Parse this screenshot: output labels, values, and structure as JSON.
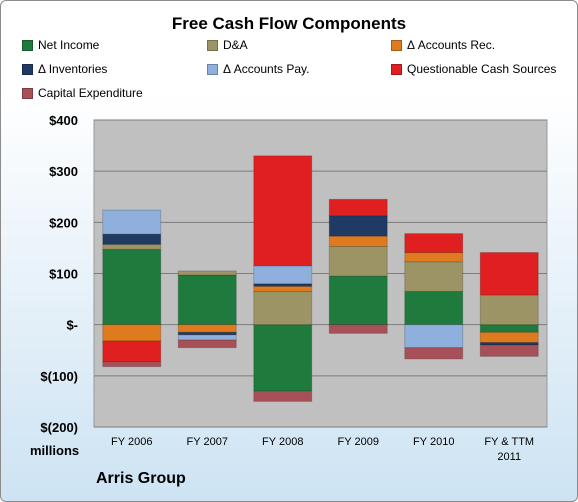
{
  "chart_data": {
    "type": "bar",
    "stacked": true,
    "title": "Free Cash Flow Components",
    "categories": [
      "FY 2006",
      "FY 2007",
      "FY 2008",
      "FY 2009",
      "FY 2010",
      "FY & TTM 2011"
    ],
    "ylim": [
      -200,
      400
    ],
    "yticks": [
      400,
      300,
      200,
      100,
      0,
      -100,
      -200
    ],
    "ytick_labels": [
      "$400",
      "$300",
      "$200",
      "$100",
      "$-",
      "$(100)",
      "$(200)"
    ],
    "ylabel": "millions",
    "grid": true,
    "legend_position": "top",
    "series": [
      {
        "name": "Net Income",
        "color": "#1f7a3e",
        "values": [
          147,
          97,
          -130,
          95,
          65,
          -15
        ]
      },
      {
        "name": "D&A",
        "color": "#9c9464",
        "values": [
          10,
          8,
          65,
          58,
          58,
          58
        ]
      },
      {
        "name": "Δ Accounts Rec.",
        "color": "#e07a1f",
        "values": [
          -32,
          -15,
          10,
          20,
          18,
          -20
        ]
      },
      {
        "name": "Δ Inventories",
        "color": "#1f3a63",
        "values": [
          20,
          -5,
          5,
          40,
          0,
          -5
        ]
      },
      {
        "name": "Δ Accounts Pay.",
        "color": "#8fb0dc",
        "values": [
          47,
          -10,
          35,
          0,
          -45,
          0
        ]
      },
      {
        "name": "Questionable Cash Sources",
        "color": "#e02020",
        "values": [
          -40,
          0,
          215,
          32,
          37,
          83
        ]
      },
      {
        "name": "Capital Expenditure",
        "color": "#a85058",
        "values": [
          -10,
          -15,
          -20,
          -17,
          -22,
          -22
        ]
      }
    ]
  },
  "footer": {
    "units": "millions",
    "company": "Arris Group"
  }
}
